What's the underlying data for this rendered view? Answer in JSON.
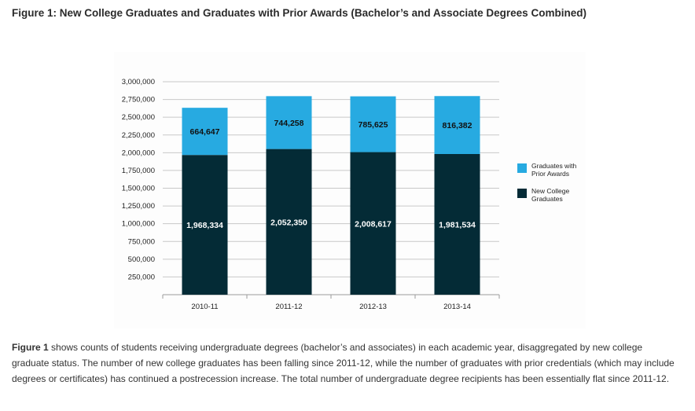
{
  "figure": {
    "title": "Figure 1: New College Graduates and Graduates with Prior Awards (Bachelor’s and Associate Degrees Combined)",
    "caption_lead": "Figure 1",
    "caption_rest": " shows counts of students receiving undergraduate degrees (bachelor’s and associates) in each academic year, disaggregated by new college graduate status. The number of new college graduates has been falling since 2011-12, while the number of graduates with prior credentials (which may include degrees or certificates) has continued a postrecession increase. The total number of undergraduate degree recipients has been essentially flat since 2011-12."
  },
  "chart_data": {
    "type": "bar",
    "stacked": true,
    "categories": [
      "2010-11",
      "2011-12",
      "2012-13",
      "2013-14"
    ],
    "series": [
      {
        "name": "New College Graduates",
        "color": "#042b36",
        "label_color": "#ffffff",
        "values": [
          1968334,
          2052350,
          2008617,
          1981534
        ],
        "labels": [
          "1,968,334",
          "2,052,350",
          "2,008,617",
          "1,981,534"
        ]
      },
      {
        "name": "Graduates with Prior Awards",
        "color": "#27aae1",
        "label_color": "#111111",
        "values": [
          664647,
          744258,
          785625,
          816382
        ],
        "labels": [
          "664,647",
          "744,258",
          "785,625",
          "816,382"
        ]
      }
    ],
    "ylim": [
      0,
      3000000
    ],
    "yticks": [
      250000,
      500000,
      750000,
      1000000,
      1250000,
      1500000,
      1750000,
      2000000,
      2250000,
      2500000,
      2750000,
      3000000
    ],
    "ytick_labels": [
      "250,000",
      "500,000",
      "750,000",
      "1,000,000",
      "1,250,000",
      "1,500,000",
      "1,750,000",
      "2,000,000",
      "2,250,000",
      "2,500,000",
      "2,750,000",
      "3,000,000"
    ],
    "legend": [
      {
        "lines": [
          "Graduates with",
          "Prior Awards"
        ],
        "color": "#27aae1"
      },
      {
        "lines": [
          "New College",
          "Graduates"
        ],
        "color": "#042b36"
      }
    ],
    "legend_position": "right",
    "grid": true,
    "grid_color": "#c8c8c8"
  }
}
